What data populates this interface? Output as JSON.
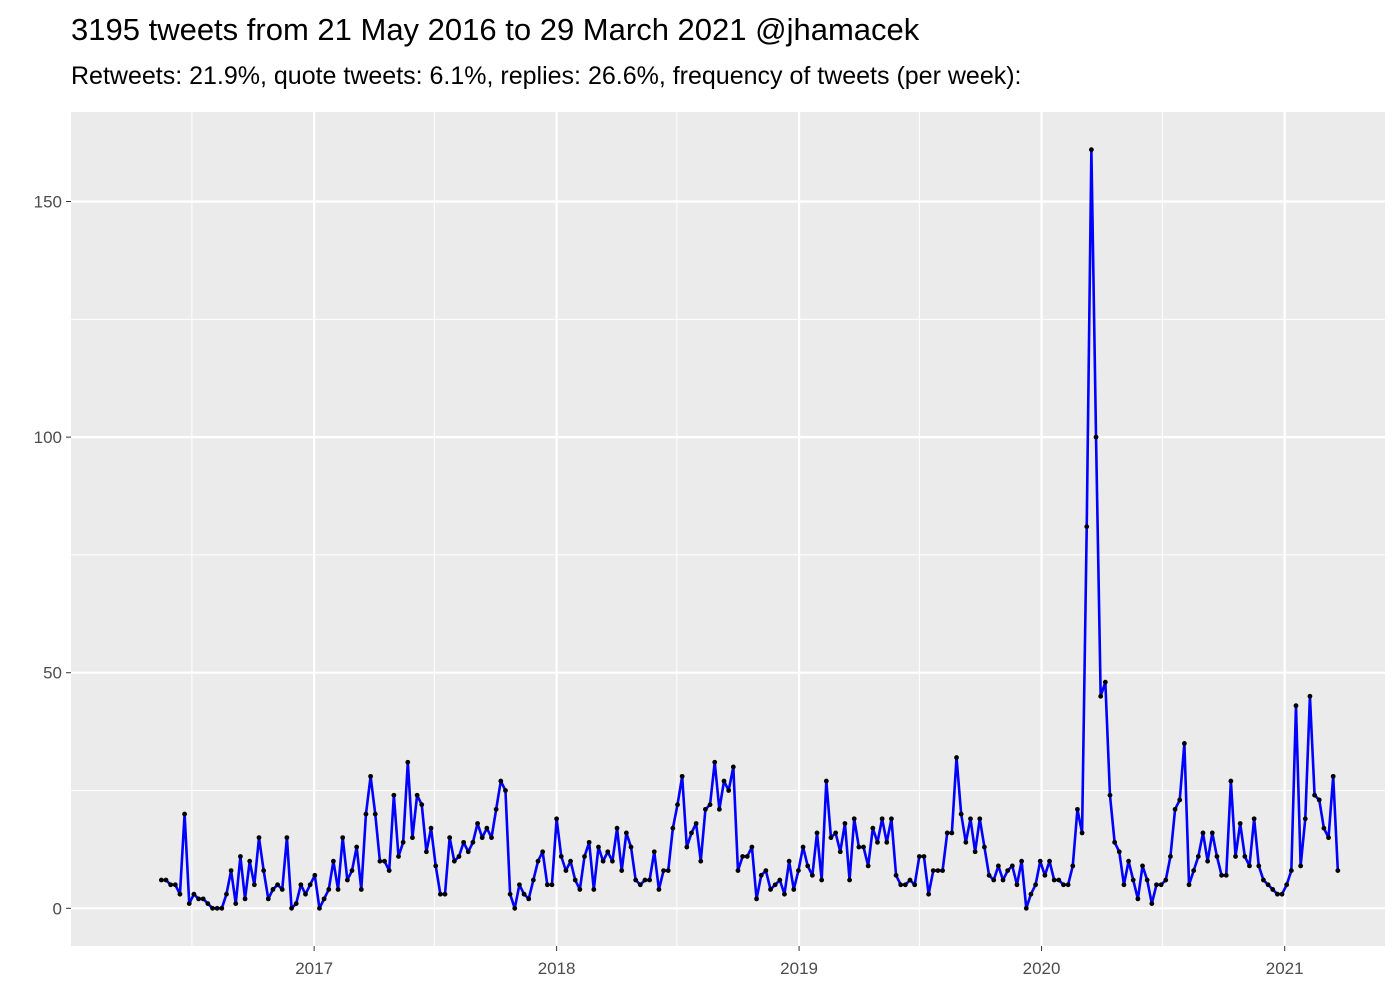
{
  "chart_data": {
    "type": "line",
    "title": "3195 tweets from 21 May 2016 to 29 March 2021 @jhamacek",
    "subtitle": "Retweets: 21.9%, quote tweets: 6.1%, replies: 26.6%, frequency of tweets (per week):",
    "xlabel": "",
    "ylabel": "",
    "x_start": "2016-05-16",
    "x_interval": "week",
    "x_ticks": [
      "2017",
      "2018",
      "2019",
      "2020",
      "2021"
    ],
    "y_ticks": [
      0,
      50,
      100,
      150
    ],
    "xlim": [
      "2016-01-01",
      "2021-06-01"
    ],
    "ylim": [
      -8,
      169
    ],
    "grid": true,
    "line_color": "#0000ff",
    "point_color": "#000000",
    "background": "#ebebeb",
    "values": [
      6,
      6,
      5,
      5,
      3,
      20,
      1,
      3,
      2,
      2,
      1,
      0,
      0,
      0,
      3,
      8,
      1,
      11,
      2,
      10,
      5,
      15,
      8,
      2,
      4,
      5,
      4,
      15,
      0,
      1,
      5,
      3,
      5,
      7,
      0,
      2,
      4,
      10,
      4,
      15,
      6,
      8,
      13,
      4,
      20,
      28,
      20,
      10,
      10,
      8,
      24,
      11,
      14,
      31,
      15,
      24,
      22,
      12,
      17,
      9,
      3,
      3,
      15,
      10,
      11,
      14,
      12,
      14,
      18,
      15,
      17,
      15,
      21,
      27,
      25,
      3,
      0,
      5,
      3,
      2,
      6,
      10,
      12,
      5,
      5,
      19,
      11,
      8,
      10,
      6,
      4,
      11,
      14,
      4,
      13,
      10,
      12,
      10,
      17,
      8,
      16,
      13,
      6,
      5,
      6,
      6,
      12,
      4,
      8,
      8,
      17,
      22,
      28,
      13,
      16,
      18,
      10,
      21,
      22,
      31,
      21,
      27,
      25,
      30,
      8,
      11,
      11,
      13,
      2,
      7,
      8,
      4,
      5,
      6,
      3,
      10,
      4,
      8,
      13,
      9,
      7,
      16,
      6,
      27,
      15,
      16,
      12,
      18,
      6,
      19,
      13,
      13,
      9,
      17,
      14,
      19,
      14,
      19,
      7,
      5,
      5,
      6,
      5,
      11,
      11,
      3,
      8,
      8,
      8,
      16,
      16,
      32,
      20,
      14,
      19,
      12,
      19,
      13,
      7,
      6,
      9,
      6,
      8,
      9,
      5,
      10,
      0,
      3,
      5,
      10,
      7,
      10,
      6,
      6,
      5,
      5,
      9,
      21,
      16,
      81,
      161,
      100,
      45,
      48,
      24,
      14,
      12,
      5,
      10,
      6,
      2,
      9,
      6,
      1,
      5,
      5,
      6,
      11,
      21,
      23,
      35,
      5,
      8,
      11,
      16,
      10,
      16,
      11,
      7,
      7,
      27,
      11,
      18,
      11,
      9,
      19,
      9,
      6,
      5,
      4,
      3,
      3,
      5,
      8,
      43,
      9,
      19,
      45,
      24,
      23,
      17,
      15,
      28,
      8
    ]
  }
}
